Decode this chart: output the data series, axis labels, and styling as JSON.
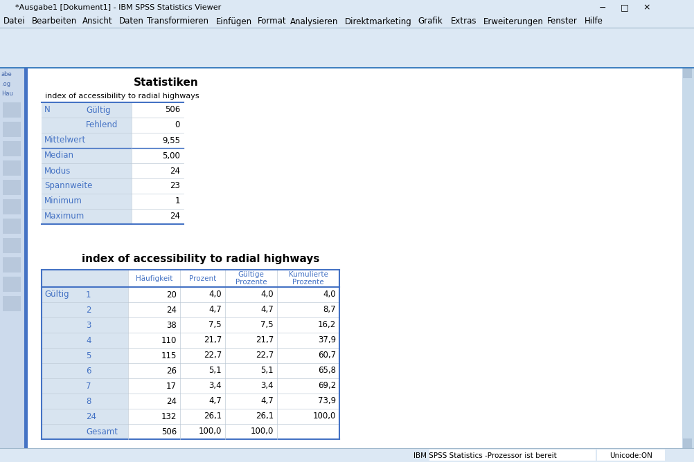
{
  "window_title": "*Ausgabe1 [Dokument1] - IBM SPSS Statistics Viewer",
  "menu_items": [
    "Datei",
    "Bearbeiten",
    "Ansicht",
    "Daten",
    "Transformieren",
    "Einfügen",
    "Format",
    "Analysieren",
    "Direktmarketing",
    "Grafik",
    "Extras",
    "Erweiterungen",
    "Fenster",
    "Hilfe"
  ],
  "title1": "Statistiken",
  "subtitle1": "index of accessibility to radial highways",
  "stats_rows": [
    [
      "N",
      "Gültig",
      "506"
    ],
    [
      "",
      "Fehlend",
      "0"
    ],
    [
      "Mittelwert",
      "",
      "9,55"
    ],
    [
      "Median",
      "",
      "5,00"
    ],
    [
      "Modus",
      "",
      "24"
    ],
    [
      "Spannweite",
      "",
      "23"
    ],
    [
      "Minimum",
      "",
      "1"
    ],
    [
      "Maximum",
      "",
      "24"
    ]
  ],
  "title2": "index of accessibility to radial highways",
  "freq_headers": [
    "",
    "",
    "Häufigkeit",
    "Prozent",
    "Gültige\nProzente",
    "Kumulierte\nProzente"
  ],
  "freq_rows": [
    [
      "Gültig",
      "1",
      "20",
      "4,0",
      "4,0",
      "4,0"
    ],
    [
      "",
      "2",
      "24",
      "4,7",
      "4,7",
      "8,7"
    ],
    [
      "",
      "3",
      "38",
      "7,5",
      "7,5",
      "16,2"
    ],
    [
      "",
      "4",
      "110",
      "21,7",
      "21,7",
      "37,9"
    ],
    [
      "",
      "5",
      "115",
      "22,7",
      "22,7",
      "60,7"
    ],
    [
      "",
      "6",
      "26",
      "5,1",
      "5,1",
      "65,8"
    ],
    [
      "",
      "7",
      "17",
      "3,4",
      "3,4",
      "69,2"
    ],
    [
      "",
      "8",
      "24",
      "4,7",
      "4,7",
      "73,9"
    ],
    [
      "",
      "24",
      "132",
      "26,1",
      "26,1",
      "100,0"
    ],
    [
      "",
      "Gesamt",
      "506",
      "100,0",
      "100,0",
      ""
    ]
  ],
  "status_text": "IBM SPSS Statistics -Prozessor ist bereit",
  "unicode_text": "Unicode:ON",
  "colors": {
    "titlebar_bg": "#d4e4f4",
    "titlebar_text": "#000000",
    "winframe_bg": "#c8daea",
    "menu_bg": "#dce8f4",
    "toolbar_bg": "#dce8f4",
    "content_bg": "#ffffff",
    "left_panel_bg": "#ccdaec",
    "left_panel_text": "#4466aa",
    "table_header_bg": "#ffffff",
    "table_label_bg": "#d8e4f0",
    "table_value_bg": "#ffffff",
    "table_border": "#4472c4",
    "table_sep": "#c0ccd8",
    "table_text_blue": "#4472c4",
    "table_text_black": "#000000",
    "status_bg": "#dce8f4",
    "scrollbar_bg": "#c8daea",
    "scroll_btn": "#b0c4d8"
  }
}
